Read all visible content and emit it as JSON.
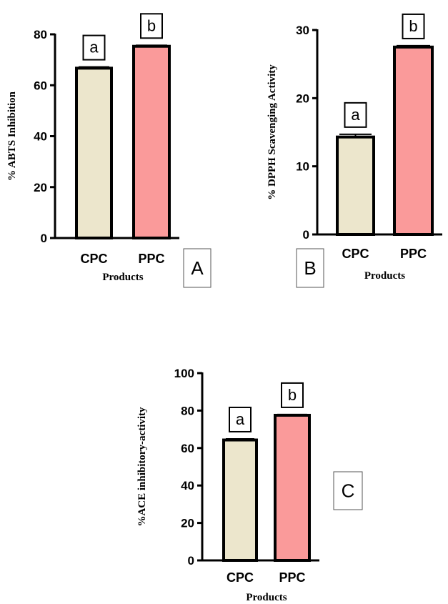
{
  "chart_data": [
    {
      "type": "bar",
      "panel_label": "A",
      "categories": [
        "CPC",
        "PPC"
      ],
      "series": [
        {
          "values": [
            66.7,
            75.3
          ],
          "errors": [
            0.5,
            0.4
          ],
          "colors": [
            "#ece6cc",
            "#fa9a9a"
          ],
          "letters": [
            "a",
            "b"
          ]
        }
      ],
      "xlabel": "Products",
      "ylabel": "% ABTS Inhibition",
      "ylim": [
        0,
        80
      ],
      "yticks": [
        0,
        20,
        40,
        60,
        80
      ],
      "grid": false
    },
    {
      "type": "bar",
      "panel_label": "B",
      "categories": [
        "CPC",
        "PPC"
      ],
      "series": [
        {
          "values": [
            14.3,
            27.5
          ],
          "errors": [
            0.4,
            0.2
          ],
          "colors": [
            "#ece6cc",
            "#fa9a9a"
          ],
          "letters": [
            "a",
            "b"
          ]
        }
      ],
      "xlabel": "Products",
      "ylabel": "% DPPH Scavenging Activity",
      "ylim": [
        0,
        30
      ],
      "yticks": [
        0,
        10,
        20,
        30
      ],
      "grid": false
    },
    {
      "type": "bar",
      "panel_label": "C",
      "categories": [
        "CPC",
        "PPC"
      ],
      "series": [
        {
          "values": [
            64.3,
            77.5
          ],
          "errors": [
            0.6,
            0.4
          ],
          "colors": [
            "#ece6cc",
            "#fa9a9a"
          ],
          "letters": [
            "a",
            "b"
          ]
        }
      ],
      "xlabel": "Products",
      "ylabel": "%ACE inhibitory-activity",
      "ylim": [
        0,
        100
      ],
      "yticks": [
        0,
        20,
        40,
        60,
        80,
        100
      ],
      "grid": false
    }
  ]
}
